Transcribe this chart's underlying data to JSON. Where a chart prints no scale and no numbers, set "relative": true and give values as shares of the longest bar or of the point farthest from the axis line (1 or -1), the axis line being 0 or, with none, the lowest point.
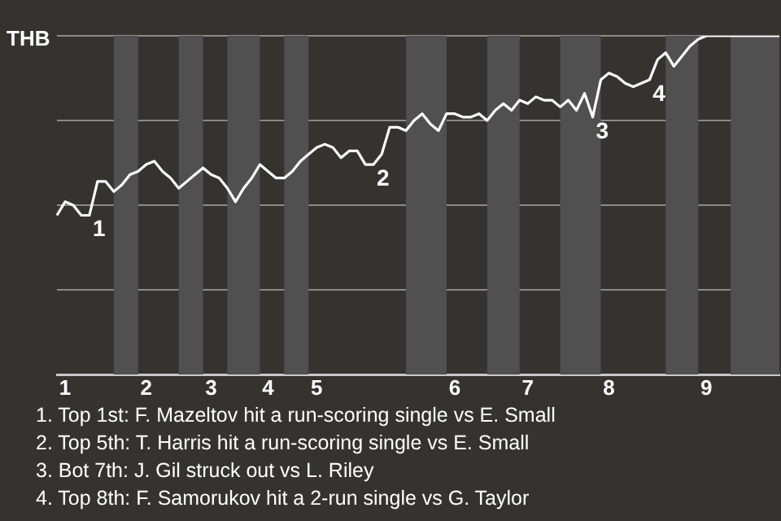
{
  "chart_data": {
    "type": "line",
    "relative": true,
    "ylabel": "THB",
    "grid": "y",
    "marker": "none",
    "legend": false,
    "categories": [
      null,
      "1",
      null,
      null,
      null,
      null,
      null,
      null,
      null,
      null,
      null,
      "2",
      null,
      null,
      null,
      null,
      null,
      null,
      null,
      "3",
      null,
      null,
      null,
      null,
      null,
      null,
      "4",
      null,
      null,
      null,
      null,
      null,
      "5",
      null,
      null,
      null,
      null,
      null,
      null,
      null,
      null,
      null,
      null,
      null,
      null,
      null,
      null,
      null,
      null,
      "6",
      null,
      null,
      null,
      null,
      null,
      null,
      null,
      null,
      "7",
      null,
      null,
      null,
      null,
      null,
      null,
      null,
      null,
      null,
      "8",
      null,
      null,
      null,
      null,
      null,
      null,
      null,
      null,
      null,
      null,
      null,
      "9",
      null,
      null,
      null,
      null,
      null,
      null,
      null,
      null,
      null
    ],
    "series": [
      {
        "color": "#ffffff",
        "values": [
          0.47,
          0.51,
          0.5,
          0.47,
          0.47,
          0.57,
          0.57,
          0.54,
          0.56,
          0.59,
          0.6,
          0.62,
          0.63,
          0.6,
          0.58,
          0.55,
          0.57,
          0.59,
          0.61,
          0.59,
          0.58,
          0.55,
          0.51,
          0.55,
          0.58,
          0.62,
          0.6,
          0.58,
          0.58,
          0.6,
          0.63,
          0.65,
          0.67,
          0.68,
          0.67,
          0.64,
          0.66,
          0.66,
          0.62,
          0.62,
          0.65,
          0.73,
          0.73,
          0.72,
          0.75,
          0.77,
          0.74,
          0.72,
          0.77,
          0.77,
          0.76,
          0.76,
          0.77,
          0.75,
          0.78,
          0.8,
          0.78,
          0.81,
          0.8,
          0.82,
          0.81,
          0.81,
          0.79,
          0.81,
          0.78,
          0.83,
          0.76,
          0.87,
          0.89,
          0.88,
          0.86,
          0.85,
          0.86,
          0.87,
          0.93,
          0.95,
          0.91,
          0.94,
          0.97,
          0.99,
          1,
          1,
          1,
          1,
          1,
          1,
          1,
          1,
          1,
          1
        ]
      }
    ],
    "annotations": [
      {
        "text": "1",
        "y": 0.47
      },
      {
        "text": "2",
        "y": 0.62
      },
      {
        "text": "3",
        "y": 0.76
      },
      {
        "text": "4",
        "y": 0.87
      },
      "1. Top 1st: F. Mazeltov hit a run-scoring single vs E. Small",
      "2. Top 5th: T. Harris hit a run-scoring single vs E. Small",
      "3. Bot 7th: J. Gil struck out vs L. Riley",
      "4. Top 8th: F. Samorukov hit a 2-run single vs G. Taylor"
    ]
  }
}
